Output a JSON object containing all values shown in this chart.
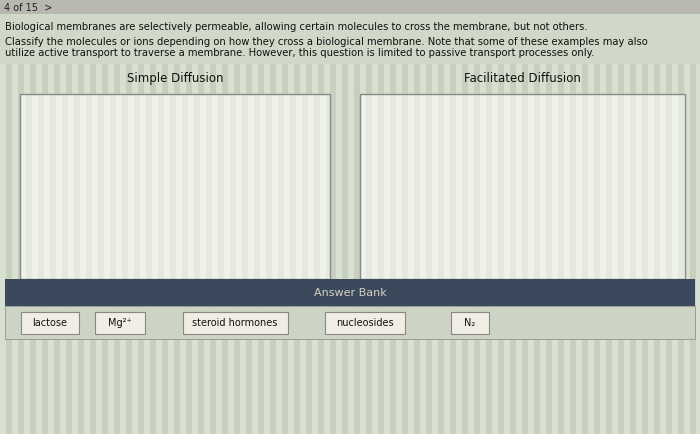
{
  "title_line1": "4 of 15  >",
  "paragraph1": "Biological membranes are selectively permeable, allowing certain molecules to cross the membrane, but not others.",
  "paragraph2_line1": "Classify the molecules or ions depending on how they cross a biological membrane. Note that some of these examples may also",
  "paragraph2_line2": "utilize active transport to traverse a membrane. However, this question is limited to passive transport processes only.",
  "box1_label": "Simple Diffusion",
  "box2_label": "Facilitated Diffusion",
  "answer_bank_label": "Answer Bank",
  "tokens": [
    "lactose",
    "Mg²⁺",
    "steroid hormones",
    "nucleosides",
    "N₂"
  ],
  "bg_color": "#cdd4c5",
  "stripe_color_a": "#d4dccb",
  "stripe_color_b": "#c8d0be",
  "box_bg": "#f0f0ec",
  "box_border": "#888880",
  "answer_bar_color": "#3a4a5c",
  "answer_bar_text_color": "#d8d0c0",
  "token_bg": "#f0ede5",
  "token_border": "#888880",
  "text_color": "#111111",
  "header_bg": "#c8c8c0",
  "header_text": "#333333"
}
